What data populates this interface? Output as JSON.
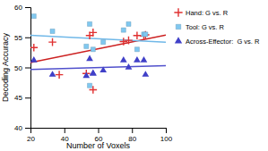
{
  "chart_data": {
    "type": "scatter",
    "xlabel": "Number of Voxels",
    "ylabel": "Decoding Accuracy",
    "xlim": [
      20,
      100
    ],
    "ylim": [
      40,
      60
    ],
    "xticks": [
      20,
      40,
      60,
      80,
      100
    ],
    "yticks": [
      40,
      45,
      50,
      55,
      60
    ],
    "legend": "right",
    "series": [
      {
        "name": "Hand: G vs. R",
        "color": "#e03030",
        "marker": "plus",
        "x": [
          22,
          33,
          37,
          53,
          55,
          57,
          57,
          75,
          78,
          83,
          87,
          88
        ],
        "values": [
          53.3,
          54.2,
          48.8,
          49.0,
          55.3,
          46.3,
          55.8,
          54.3,
          54.5,
          55.3,
          55.2,
          55.4
        ],
        "trend": {
          "x": [
            20,
            100
          ],
          "values": [
            50.82,
            55.37
          ],
          "color": "#cc2020"
        }
      },
      {
        "name": "Tool: G vs. R",
        "color": "#80c8f0",
        "marker": "square",
        "x": [
          22,
          33,
          53,
          55,
          55,
          57,
          63,
          75,
          78,
          83,
          87,
          88
        ],
        "values": [
          58.5,
          56.0,
          53.5,
          57.2,
          47.0,
          53.0,
          54.2,
          56.2,
          57.2,
          53.0,
          55.5,
          55.5
        ],
        "trend": {
          "x": [
            20,
            100
          ],
          "values": [
            55.35,
            54.19
          ],
          "color": "#70b8e8"
        }
      },
      {
        "name": "Across-Effector:  G vs. R",
        "color": "#4040c8",
        "marker": "triangle",
        "x": [
          22,
          33,
          53,
          55,
          57,
          57,
          63,
          75,
          78,
          83,
          87,
          88
        ],
        "values": [
          51.2,
          48.8,
          48.6,
          51.4,
          49.0,
          49.0,
          49.5,
          51.2,
          50.0,
          51.2,
          51.2,
          48.8
        ],
        "trend": {
          "x": [
            20,
            100
          ],
          "values": [
            49.65,
            50.29
          ],
          "color": "#5050cc"
        }
      }
    ]
  }
}
